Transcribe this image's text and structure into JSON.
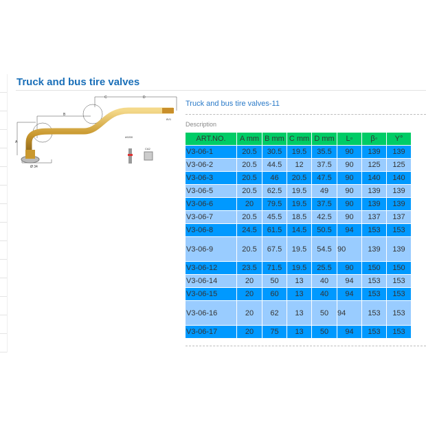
{
  "page": {
    "title": "Truck and bus tire valves"
  },
  "product": {
    "name": "Truck and bus tire valves-11",
    "description_label": "Description"
  },
  "diagram": {
    "labels": [
      "A",
      "B",
      "C",
      "D",
      "Ø 34",
      "#9200",
      "CA2",
      "8V1"
    ]
  },
  "table": {
    "headers": [
      "ART.NO.",
      "A mm",
      "B mm",
      "C mm",
      "D mm",
      "L◦",
      "β◦",
      "Y°"
    ],
    "rows": [
      [
        "V3-06-1",
        "20.5",
        "30.5",
        "19.5",
        "35.5",
        "90",
        "139",
        "139"
      ],
      [
        "V3-06-2",
        "20.5",
        "44.5",
        "12",
        "37.5",
        "90",
        "125",
        "125"
      ],
      [
        "V3-06-3",
        "20.5",
        "46",
        "20.5",
        "47.5",
        "90",
        "140",
        "140"
      ],
      [
        "V3-06-5",
        "20.5",
        "62.5",
        "19.5",
        "49",
        "90",
        "139",
        "139"
      ],
      [
        "V3-06-6",
        "20",
        "79.5",
        "19.5",
        "37.5",
        "90",
        "139",
        "139"
      ],
      [
        "V3-06-7",
        "20.5",
        "45.5",
        "18.5",
        "42.5",
        "90",
        "137",
        "137"
      ],
      [
        "V3-06-8",
        "24.5",
        "61.5",
        "14.5",
        "50.5",
        "94",
        "153",
        "153"
      ],
      [
        "V3-06-9",
        "20.5",
        "67.5",
        "19.5",
        "54.5",
        "90",
        "139",
        "139"
      ],
      [
        "V3-06-12",
        "23.5",
        "71.5",
        "19.5",
        "25.5",
        "90",
        "150",
        "150"
      ],
      [
        "V3-06-14",
        "20",
        "50",
        "13",
        "40",
        "94",
        "153",
        "153"
      ],
      [
        "V3-06-15",
        "20",
        "60",
        "13",
        "40",
        "94",
        "153",
        "153"
      ],
      [
        "V3-06-16",
        "20",
        "62",
        "13",
        "50",
        "94",
        "153",
        "153"
      ],
      [
        "V3-06-17",
        "20",
        "75",
        "13",
        "50",
        "94",
        "153",
        "153"
      ]
    ]
  },
  "colors": {
    "header": "#00cc66",
    "row_dark": "#0099ff",
    "row_light": "#99ccff",
    "title": "#1a6fb8"
  }
}
